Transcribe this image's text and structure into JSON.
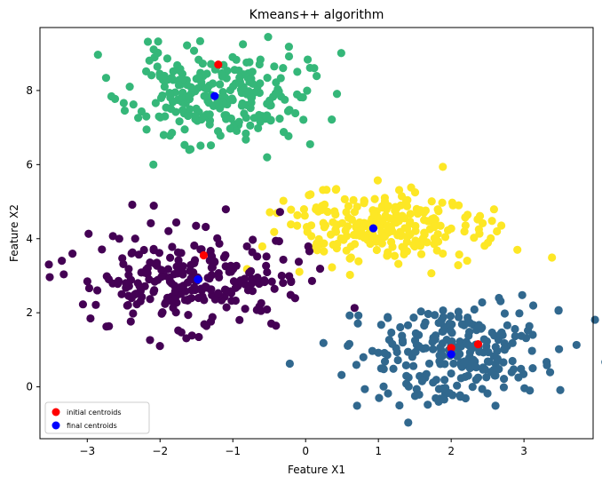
{
  "chart_data": {
    "type": "scatter",
    "title": "Kmeans++ algorithm",
    "xlabel": "Feature X1",
    "ylabel": "Feature X2",
    "xlim": [
      -3.65,
      3.95
    ],
    "ylim": [
      -1.4,
      9.7
    ],
    "xticks": [
      -3,
      -2,
      -1,
      0,
      1,
      2,
      3
    ],
    "yticks": [
      0,
      2,
      4,
      6,
      8
    ],
    "grid": false,
    "legend_position": "lower-left",
    "clusters": [
      {
        "color": "#35b779",
        "center": [
          -1.25,
          7.85
        ],
        "spread": [
          0.6,
          0.65
        ],
        "count": 250,
        "seed": 11
      },
      {
        "color": "#fde725",
        "center": [
          1.0,
          4.3
        ],
        "spread": [
          0.7,
          0.5
        ],
        "count": 250,
        "seed": 23
      },
      {
        "color": "#440154",
        "center": [
          -1.5,
          2.9
        ],
        "spread": [
          0.75,
          0.65
        ],
        "count": 250,
        "seed": 37
      },
      {
        "color": "#31688e",
        "center": [
          2.0,
          0.9
        ],
        "spread": [
          0.65,
          0.65
        ],
        "count": 250,
        "seed": 53
      }
    ],
    "series": [
      {
        "name": "initial centroids",
        "color": "#ff0000",
        "x": [
          -1.2,
          -1.4,
          2.0,
          2.37
        ],
        "y": [
          8.7,
          3.55,
          1.05,
          1.15
        ]
      },
      {
        "name": "final centroids",
        "color": "#0000ff",
        "x": [
          -1.25,
          0.93,
          -1.48,
          2.0
        ],
        "y": [
          7.85,
          4.28,
          2.9,
          0.88
        ]
      }
    ]
  }
}
